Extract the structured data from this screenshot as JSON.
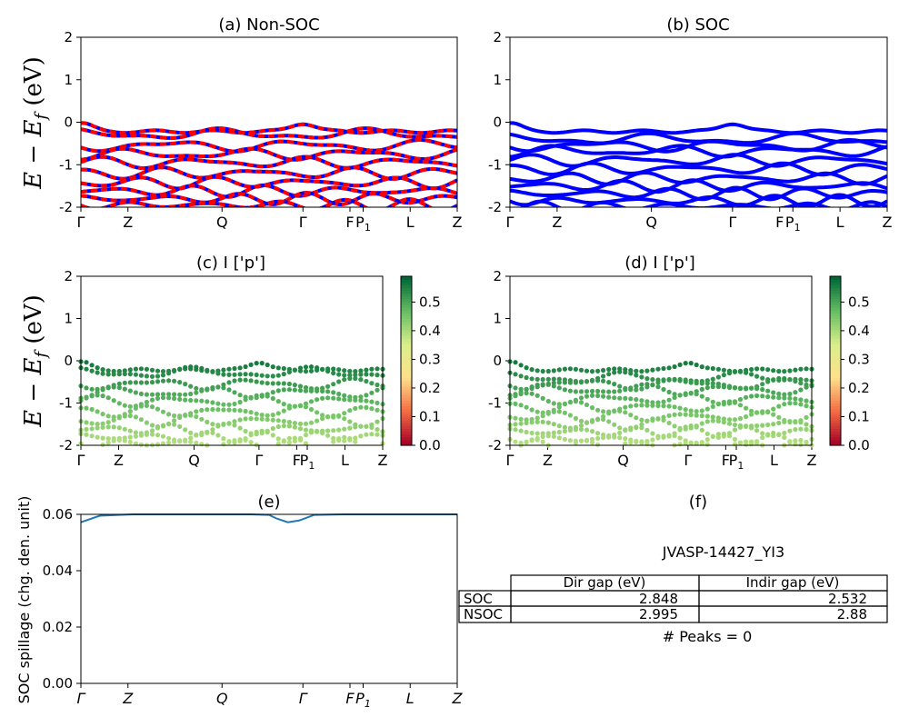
{
  "figure": {
    "panels": [
      {
        "id": "a",
        "title": "(a) Non-SOC"
      },
      {
        "id": "b",
        "title": "(b) SOC"
      },
      {
        "id": "c",
        "title": "(c)  I ['p']"
      },
      {
        "id": "d",
        "title": "(d) I ['p']"
      },
      {
        "id": "e",
        "title": "(e)"
      },
      {
        "id": "f",
        "title": "(f)"
      }
    ],
    "ylabel_band": "E − E",
    "ylabel_band_sub": "f",
    "ylabel_band_unit": " (eV)",
    "ylabel_spillage": "SOC spillage (chg. den. unit)",
    "kpath_labels": [
      "Γ",
      "Z",
      "Q",
      "Γ",
      "F",
      "P",
      "L",
      "Z"
    ],
    "kpath_label_sub": "1",
    "colorbar_ticks": [
      "0.0",
      "0.1",
      "0.2",
      "0.3",
      "0.4",
      "0.5"
    ],
    "colors": {
      "soc_band": "#0000ff",
      "nonsoc_band_a": "#ff0000",
      "nonsoc_band_b": "#0000ff",
      "spillage_line": "#1f77b4",
      "colormap": [
        "#a50026",
        "#f46d43",
        "#fee08b",
        "#d9ef8b",
        "#66bd63",
        "#006837"
      ]
    }
  },
  "table": {
    "material": "JVASP-14427_YI3",
    "col_headers": [
      "Dir gap (eV)",
      "Indir gap (eV)"
    ],
    "rows": [
      {
        "label": "SOC",
        "dir": "2.848",
        "indir": "2.532"
      },
      {
        "label": "NSOC",
        "dir": "2.995",
        "indir": "2.88"
      }
    ],
    "peaks_text": "# Peaks = 0"
  },
  "chart_data": [
    {
      "type": "line",
      "panel": "a",
      "title": "(a) Non-SOC",
      "ylabel": "E − E_f (eV)",
      "ylim": [
        -2,
        2
      ],
      "yticks": [
        -2,
        -1,
        0,
        1,
        2
      ],
      "kpath": [
        "Γ",
        "Z",
        "Q",
        "Γ",
        "F",
        "P_1",
        "L",
        "Z"
      ],
      "bands": [
        -0.02,
        -0.28,
        -0.55,
        -0.75,
        -0.95,
        -1.2,
        -1.42,
        -1.62,
        -1.8,
        -1.95
      ],
      "series_colors": [
        "#ff0000",
        "#0000ff"
      ]
    },
    {
      "type": "line",
      "panel": "b",
      "title": "(b) SOC",
      "ylabel": "",
      "ylim": [
        -2,
        2
      ],
      "yticks": [
        -2,
        -1,
        0,
        1,
        2
      ],
      "kpath": [
        "Γ",
        "Z",
        "Q",
        "Γ",
        "F",
        "P_1",
        "L",
        "Z"
      ],
      "bands": [
        -0.02,
        -0.4,
        -0.55,
        -0.68,
        -0.9,
        -1.1,
        -1.32,
        -1.5,
        -1.68,
        -1.85,
        -1.98
      ],
      "series_colors": [
        "#0000ff"
      ]
    },
    {
      "type": "scatter",
      "panel": "c",
      "title": "(c)  I ['p']",
      "ylim": [
        -2,
        2
      ],
      "yticks": [
        -2,
        -1,
        0,
        1,
        2
      ],
      "kpath": [
        "Γ",
        "Z",
        "Q",
        "Γ",
        "F",
        "P_1",
        "L",
        "Z"
      ],
      "color_range": [
        0.0,
        0.59
      ],
      "bands": [
        -0.02,
        -0.28,
        -0.55,
        -0.75,
        -0.95,
        -1.2,
        -1.42,
        -1.62,
        -1.8,
        -1.95
      ]
    },
    {
      "type": "scatter",
      "panel": "d",
      "title": "(d) I ['p']",
      "ylim": [
        -2,
        2
      ],
      "yticks": [
        -2,
        -1,
        0,
        1,
        2
      ],
      "kpath": [
        "Γ",
        "Z",
        "Q",
        "Γ",
        "F",
        "P_1",
        "L",
        "Z"
      ],
      "color_range": [
        0.0,
        0.59
      ],
      "bands": [
        -0.02,
        -0.4,
        -0.55,
        -0.68,
        -0.9,
        -1.1,
        -1.32,
        -1.5,
        -1.68,
        -1.85,
        -1.98
      ]
    },
    {
      "type": "line",
      "panel": "e",
      "title": "(e)",
      "ylabel": "SOC spillage (chg. den. unit)",
      "ylim": [
        0.0,
        0.06
      ],
      "yticks": [
        0.0,
        0.02,
        0.04,
        0.06
      ],
      "kpath": [
        "Γ",
        "Z",
        "Q",
        "Γ",
        "F",
        "P_1",
        "L",
        "Z"
      ],
      "x": [
        0.0,
        0.05,
        0.14,
        0.3,
        0.45,
        0.5,
        0.52,
        0.55,
        0.58,
        0.62,
        0.7,
        0.85,
        1.0
      ],
      "values": [
        0.0572,
        0.0595,
        0.06,
        0.06,
        0.06,
        0.0598,
        0.0585,
        0.0572,
        0.0578,
        0.0598,
        0.06,
        0.06,
        0.06
      ]
    }
  ]
}
